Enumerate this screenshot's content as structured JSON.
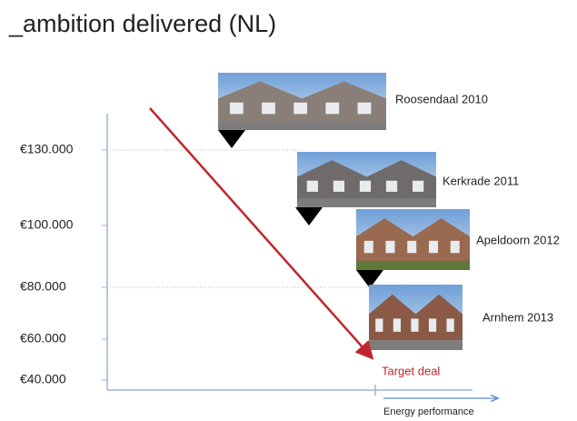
{
  "title": "_ambition delivered (NL)",
  "y_axis_labels": [
    "€130.000",
    "€100.000",
    "€80.000",
    "€60.000",
    "€40.000"
  ],
  "projects": [
    {
      "label": "Roosendaal 2010"
    },
    {
      "label": "Kerkrade 2011"
    },
    {
      "label": "Apeldoorn 2012"
    },
    {
      "label": "Arnhem 2013"
    }
  ],
  "target_label": "Target deal",
  "x_axis_label": "Energy performance"
}
